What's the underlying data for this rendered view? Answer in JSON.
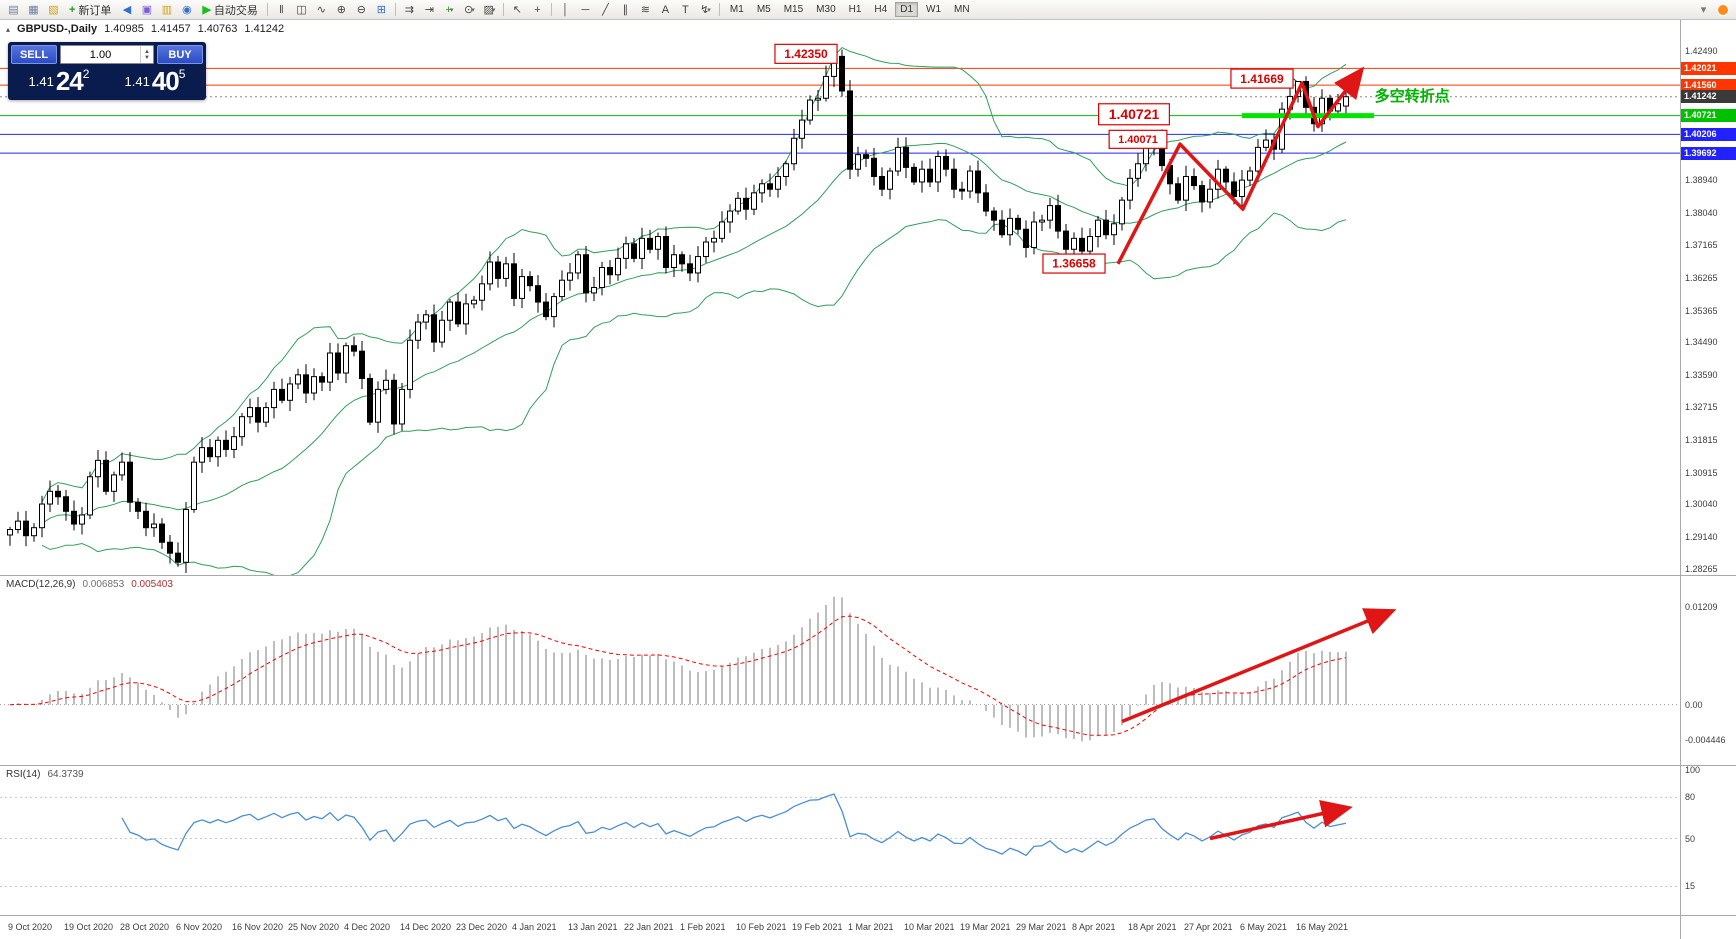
{
  "toolbar": {
    "items": [
      {
        "type": "icon",
        "name": "chart-window-icon",
        "glyph": "▤",
        "color": "#6b7f9e"
      },
      {
        "type": "icon",
        "name": "tile-charts-icon",
        "glyph": "▦",
        "color": "#6b7f9e"
      },
      {
        "type": "icon",
        "name": "profiles-icon",
        "glyph": "▧",
        "color": "#d4a017"
      },
      {
        "type": "button",
        "name": "new-order-button",
        "glyph": "+",
        "glyph_color": "#18a018",
        "label": "新订单"
      },
      {
        "type": "icon",
        "name": "sound-icon",
        "glyph": "◀",
        "color": "#2f6fd0"
      },
      {
        "type": "icon",
        "name": "strategy-tester-icon",
        "glyph": "▣",
        "color": "#7a5ad4"
      },
      {
        "type": "icon",
        "name": "market-watch-icon",
        "glyph": "▥",
        "color": "#d4a017"
      },
      {
        "type": "icon",
        "name": "navigator-icon",
        "glyph": "◉",
        "color": "#2f6fd0"
      },
      {
        "type": "button",
        "name": "autotrading-button",
        "glyph": "▶",
        "glyph_color": "#18c018",
        "label": "自动交易"
      },
      {
        "type": "sep"
      },
      {
        "type": "icon",
        "name": "bar-chart-mode-icon",
        "glyph": "‖",
        "color": "#444"
      },
      {
        "type": "icon",
        "name": "candle-chart-mode-icon",
        "glyph": "◫",
        "color": "#444"
      },
      {
        "type": "icon",
        "name": "line-chart-mode-icon",
        "glyph": "∿",
        "color": "#444"
      },
      {
        "type": "icon",
        "name": "zoom-in-icon",
        "glyph": "⊕",
        "color": "#444"
      },
      {
        "type": "icon",
        "name": "zoom-out-icon",
        "glyph": "⊖",
        "color": "#444"
      },
      {
        "type": "icon",
        "name": "grid-icon",
        "glyph": "⊞",
        "color": "#2f6fd0"
      },
      {
        "type": "sep"
      },
      {
        "type": "icon",
        "name": "auto-scroll-icon",
        "glyph": "⇉",
        "color": "#444"
      },
      {
        "type": "icon",
        "name": "chart-shift-icon",
        "glyph": "⇥",
        "color": "#444"
      },
      {
        "type": "dropdown",
        "name": "indicators-button",
        "glyph": "+",
        "color": "#18a018"
      },
      {
        "type": "dropdown",
        "name": "periods-button",
        "glyph": "⊙",
        "color": "#444"
      },
      {
        "type": "dropdown",
        "name": "templates-button",
        "glyph": "▨",
        "color": "#444"
      },
      {
        "type": "sep"
      },
      {
        "type": "icon",
        "name": "cursor-icon",
        "glyph": "↖",
        "color": "#444"
      },
      {
        "type": "icon",
        "name": "crosshair-icon",
        "glyph": "+",
        "color": "#444"
      },
      {
        "type": "sep"
      },
      {
        "type": "icon",
        "name": "vertical-line-icon",
        "glyph": "│",
        "color": "#444"
      },
      {
        "type": "icon",
        "name": "horizontal-line-icon",
        "glyph": "─",
        "color": "#444"
      },
      {
        "type": "icon",
        "name": "trendline-icon",
        "glyph": "╱",
        "color": "#444"
      },
      {
        "type": "icon",
        "name": "channel-icon",
        "glyph": "∥",
        "color": "#444"
      },
      {
        "type": "icon",
        "name": "fibonacci-icon",
        "glyph": "≋",
        "color": "#444"
      },
      {
        "type": "icon",
        "name": "text-tool-icon",
        "glyph": "A",
        "color": "#444"
      },
      {
        "type": "icon",
        "name": "label-tool-icon",
        "glyph": "T",
        "color": "#444"
      },
      {
        "type": "dropdown",
        "name": "arrows-tool-icon",
        "glyph": "↯",
        "color": "#444"
      },
      {
        "type": "sep"
      },
      {
        "type": "tf"
      },
      {
        "type": "spacer"
      },
      {
        "type": "icon",
        "name": "toolbar-overflow-icon",
        "glyph": "▾",
        "color": "#777"
      },
      {
        "type": "status",
        "name": "status-indicator-icon",
        "color": "#ff8c1a"
      }
    ],
    "timeframes": {
      "options": [
        "M1",
        "M5",
        "M15",
        "M30",
        "H1",
        "H4",
        "D1",
        "W1",
        "MN"
      ],
      "active": "D1"
    }
  },
  "chart": {
    "symbol": "GBPUSD-,Daily",
    "open": "1.40985",
    "high": "1.41457",
    "low": "1.40763",
    "close": "1.41242",
    "trade_panel": {
      "sell_label": "SELL",
      "buy_label": "BUY",
      "volume": "1.00",
      "bid_small": "1.41",
      "bid_big": "24",
      "bid_sup": "2",
      "ask_small": "1.41",
      "ask_big": "40",
      "ask_sup": "5"
    },
    "price_axis_regular": [
      {
        "text": "1.42490",
        "value": 1.4249
      },
      {
        "text": "1.38940",
        "value": 1.3894
      },
      {
        "text": "1.38040",
        "value": 1.3804
      },
      {
        "text": "1.37165",
        "value": 1.37165
      },
      {
        "text": "1.36265",
        "value": 1.36265
      },
      {
        "text": "1.35365",
        "value": 1.35365
      },
      {
        "text": "1.34490",
        "value": 1.3449
      },
      {
        "text": "1.33590",
        "value": 1.3359
      },
      {
        "text": "1.32715",
        "value": 1.32715
      },
      {
        "text": "1.31815",
        "value": 1.31815
      },
      {
        "text": "1.30915",
        "value": 1.30915
      },
      {
        "text": "1.30040",
        "value": 1.3004
      },
      {
        "text": "1.29140",
        "value": 1.2914
      },
      {
        "text": "1.28265",
        "value": 1.28265
      }
    ]
  },
  "macd_label": {
    "name": "MACD(12,26,9)",
    "v1": "0.006853",
    "v2": "0.005403"
  },
  "rsi_label": {
    "name": "RSI(14)",
    "v": "64.3739"
  },
  "colors": {
    "line_red": "#ff3600",
    "line_blue": "#2222ff",
    "line_green": "#00c000",
    "segment_green": "#00e400",
    "arrow_red": "#e01515",
    "annotation_red": "#dd0000",
    "bb_green": "#2fa05a",
    "macd_signal": "#ff0000",
    "macd_hist": "#bdbdbd",
    "rsi_line": "#4a8fd4",
    "current_tag": "#3a3a3a"
  },
  "chart_data": {
    "type": "candlestick",
    "symbol": "GBPUSD",
    "timeframe": "Daily",
    "title": "GBPUSD-,Daily 1.40985 1.41457 1.40763 1.41242",
    "price_range": [
      1.281,
      1.4335
    ],
    "bars_per_label": 7,
    "x_labels": [
      "9 Oct 2020",
      "19 Oct 2020",
      "28 Oct 2020",
      "6 Nov 2020",
      "16 Nov 2020",
      "25 Nov 2020",
      "4 Dec 2020",
      "14 Dec 2020",
      "23 Dec 2020",
      "4 Jan 2021",
      "13 Jan 2021",
      "22 Jan 2021",
      "1 Feb 2021",
      "10 Feb 2021",
      "19 Feb 2021",
      "1 Mar 2021",
      "10 Mar 2021",
      "19 Mar 2021",
      "29 Mar 2021",
      "8 Apr 2021",
      "18 Apr 2021",
      "27 Apr 2021",
      "6 May 2021",
      "16 May 2021"
    ],
    "closes": [
      1.2935,
      1.2958,
      1.2918,
      1.294,
      1.3005,
      1.304,
      1.3025,
      1.2985,
      1.295,
      1.2975,
      1.308,
      1.3125,
      1.304,
      1.3085,
      1.312,
      1.301,
      1.2985,
      1.294,
      1.295,
      1.29,
      1.287,
      1.2845,
      1.299,
      1.312,
      1.316,
      1.3135,
      1.318,
      1.3155,
      1.319,
      1.3245,
      1.327,
      1.323,
      1.327,
      1.332,
      1.329,
      1.3335,
      1.336,
      1.331,
      1.3355,
      1.334,
      1.342,
      1.3365,
      1.344,
      1.3425,
      1.335,
      1.323,
      1.332,
      1.3345,
      1.3225,
      1.332,
      1.3455,
      1.3505,
      1.3525,
      1.345,
      1.351,
      1.356,
      1.35,
      1.3555,
      1.3565,
      1.361,
      1.367,
      1.3625,
      1.3665,
      1.357,
      1.363,
      1.3605,
      1.356,
      1.352,
      1.3575,
      1.362,
      1.364,
      1.369,
      1.3585,
      1.36,
      1.3655,
      1.3635,
      1.368,
      1.372,
      1.368,
      1.3735,
      1.3705,
      1.374,
      1.3655,
      1.369,
      1.3665,
      1.364,
      1.3685,
      1.3725,
      1.3735,
      1.378,
      1.381,
      1.3845,
      1.3815,
      1.386,
      1.3885,
      1.387,
      1.3905,
      1.394,
      1.401,
      1.406,
      1.4115,
      1.412,
      1.418,
      1.4235,
      1.414,
      1.3925,
      1.3965,
      1.3955,
      1.3905,
      1.387,
      1.392,
      1.3985,
      1.393,
      1.389,
      1.3925,
      1.389,
      1.396,
      1.3925,
      1.387,
      1.3865,
      1.392,
      1.386,
      1.381,
      1.3785,
      1.3745,
      1.379,
      1.376,
      1.371,
      1.378,
      1.3785,
      1.3825,
      1.3755,
      1.3705,
      1.3735,
      1.37,
      1.374,
      1.3785,
      1.3745,
      1.3775,
      1.384,
      1.39,
      1.394,
      1.399,
      1.4005,
      1.3935,
      1.3885,
      1.384,
      1.3905,
      1.388,
      1.3835,
      1.387,
      1.3925,
      1.389,
      1.385,
      1.3895,
      1.392,
      1.3985,
      1.4005,
      1.398,
      1.409,
      1.4125,
      1.4166,
      1.4095,
      1.405,
      1.412,
      1.4085,
      1.4105,
      1.41242
    ],
    "forced_bars": [
      {
        "i": 103,
        "h": 1.4235
      },
      {
        "i": 143,
        "h": 1.40071
      },
      {
        "i": 132,
        "l": 1.36658
      },
      {
        "i": 161,
        "h": 1.41669
      },
      {
        "i": 167,
        "o": 1.40985,
        "h": 1.41457,
        "l": 1.40763,
        "c": 1.41242
      }
    ],
    "bollinger": {
      "period": 20,
      "deviation": 2
    },
    "hlines": [
      {
        "price": 1.42021,
        "label": "1.42021",
        "color": "#ff3600",
        "w": 1
      },
      {
        "price": 1.4156,
        "label": "1.41560",
        "color": "#ff3600",
        "w": 1
      },
      {
        "price": 1.40721,
        "label": "1.40721",
        "color": "#00c000",
        "w": 1
      },
      {
        "price": 1.40206,
        "label": "1.40206",
        "color": "#2222ff",
        "w": 1
      },
      {
        "price": 1.39692,
        "label": "1.39692",
        "color": "#2222ff",
        "w": 1
      }
    ],
    "current_price": {
      "price": 1.41242,
      "label": "1.41242"
    },
    "green_segment": {
      "price": 1.40721,
      "from_bar": 154,
      "to_bar": 170.5,
      "w": 5
    },
    "cn_label": {
      "text": "多空转折点",
      "bar": 170.6,
      "price": 1.4112,
      "size": 15,
      "color": "#00b400"
    },
    "annotations": [
      {
        "text": "1.42350",
        "bar": 99.5,
        "price": 1.4242,
        "size": 12,
        "to_bar": 103.3,
        "to_price": 1.4236
      },
      {
        "text": "1.41669",
        "bar": 156.5,
        "price": 1.4174,
        "size": 12,
        "to_bar": 160.8,
        "to_price": 1.41672
      },
      {
        "text": "1.40721",
        "bar": 140.5,
        "price": 1.4076,
        "size": 14
      },
      {
        "text": "1.40071",
        "bar": 141.0,
        "price": 1.40071,
        "size": 11
      },
      {
        "text": "1.36658",
        "bar": 133.0,
        "price": 1.36658,
        "size": 12
      }
    ],
    "trend_arrow": [
      [
        138.5,
        1.3665
      ],
      [
        146.25,
        1.3994
      ],
      [
        154.1,
        1.3815
      ],
      [
        161.5,
        1.4162
      ],
      [
        163.5,
        1.4042
      ],
      [
        168.75,
        1.4192
      ]
    ],
    "macd": {
      "fast": 12,
      "slow": 26,
      "signal_period": 9,
      "value_range": [
        -0.0075,
        0.016
      ],
      "axis": [
        {
          "text": "0.01209",
          "value": 0.01209
        },
        {
          "text": "0.00",
          "value": 0
        },
        {
          "text": "-0.004446",
          "value": -0.004446
        }
      ],
      "arrow": {
        "from_bar": 139,
        "from_frac": 0.77,
        "to_bar": 172.5,
        "to_frac": 0.19
      }
    },
    "rsi": {
      "period": 14,
      "levels": [
        80,
        50,
        15
      ],
      "axis": [
        {
          "text": "100",
          "value": 100
        },
        {
          "text": "80",
          "value": 80
        },
        {
          "text": "50",
          "value": 50
        },
        {
          "text": "15",
          "value": 15
        }
      ],
      "arrow": {
        "from_bar": 150,
        "from_value": 50,
        "to_bar": 167,
        "to_value": 72
      }
    }
  }
}
